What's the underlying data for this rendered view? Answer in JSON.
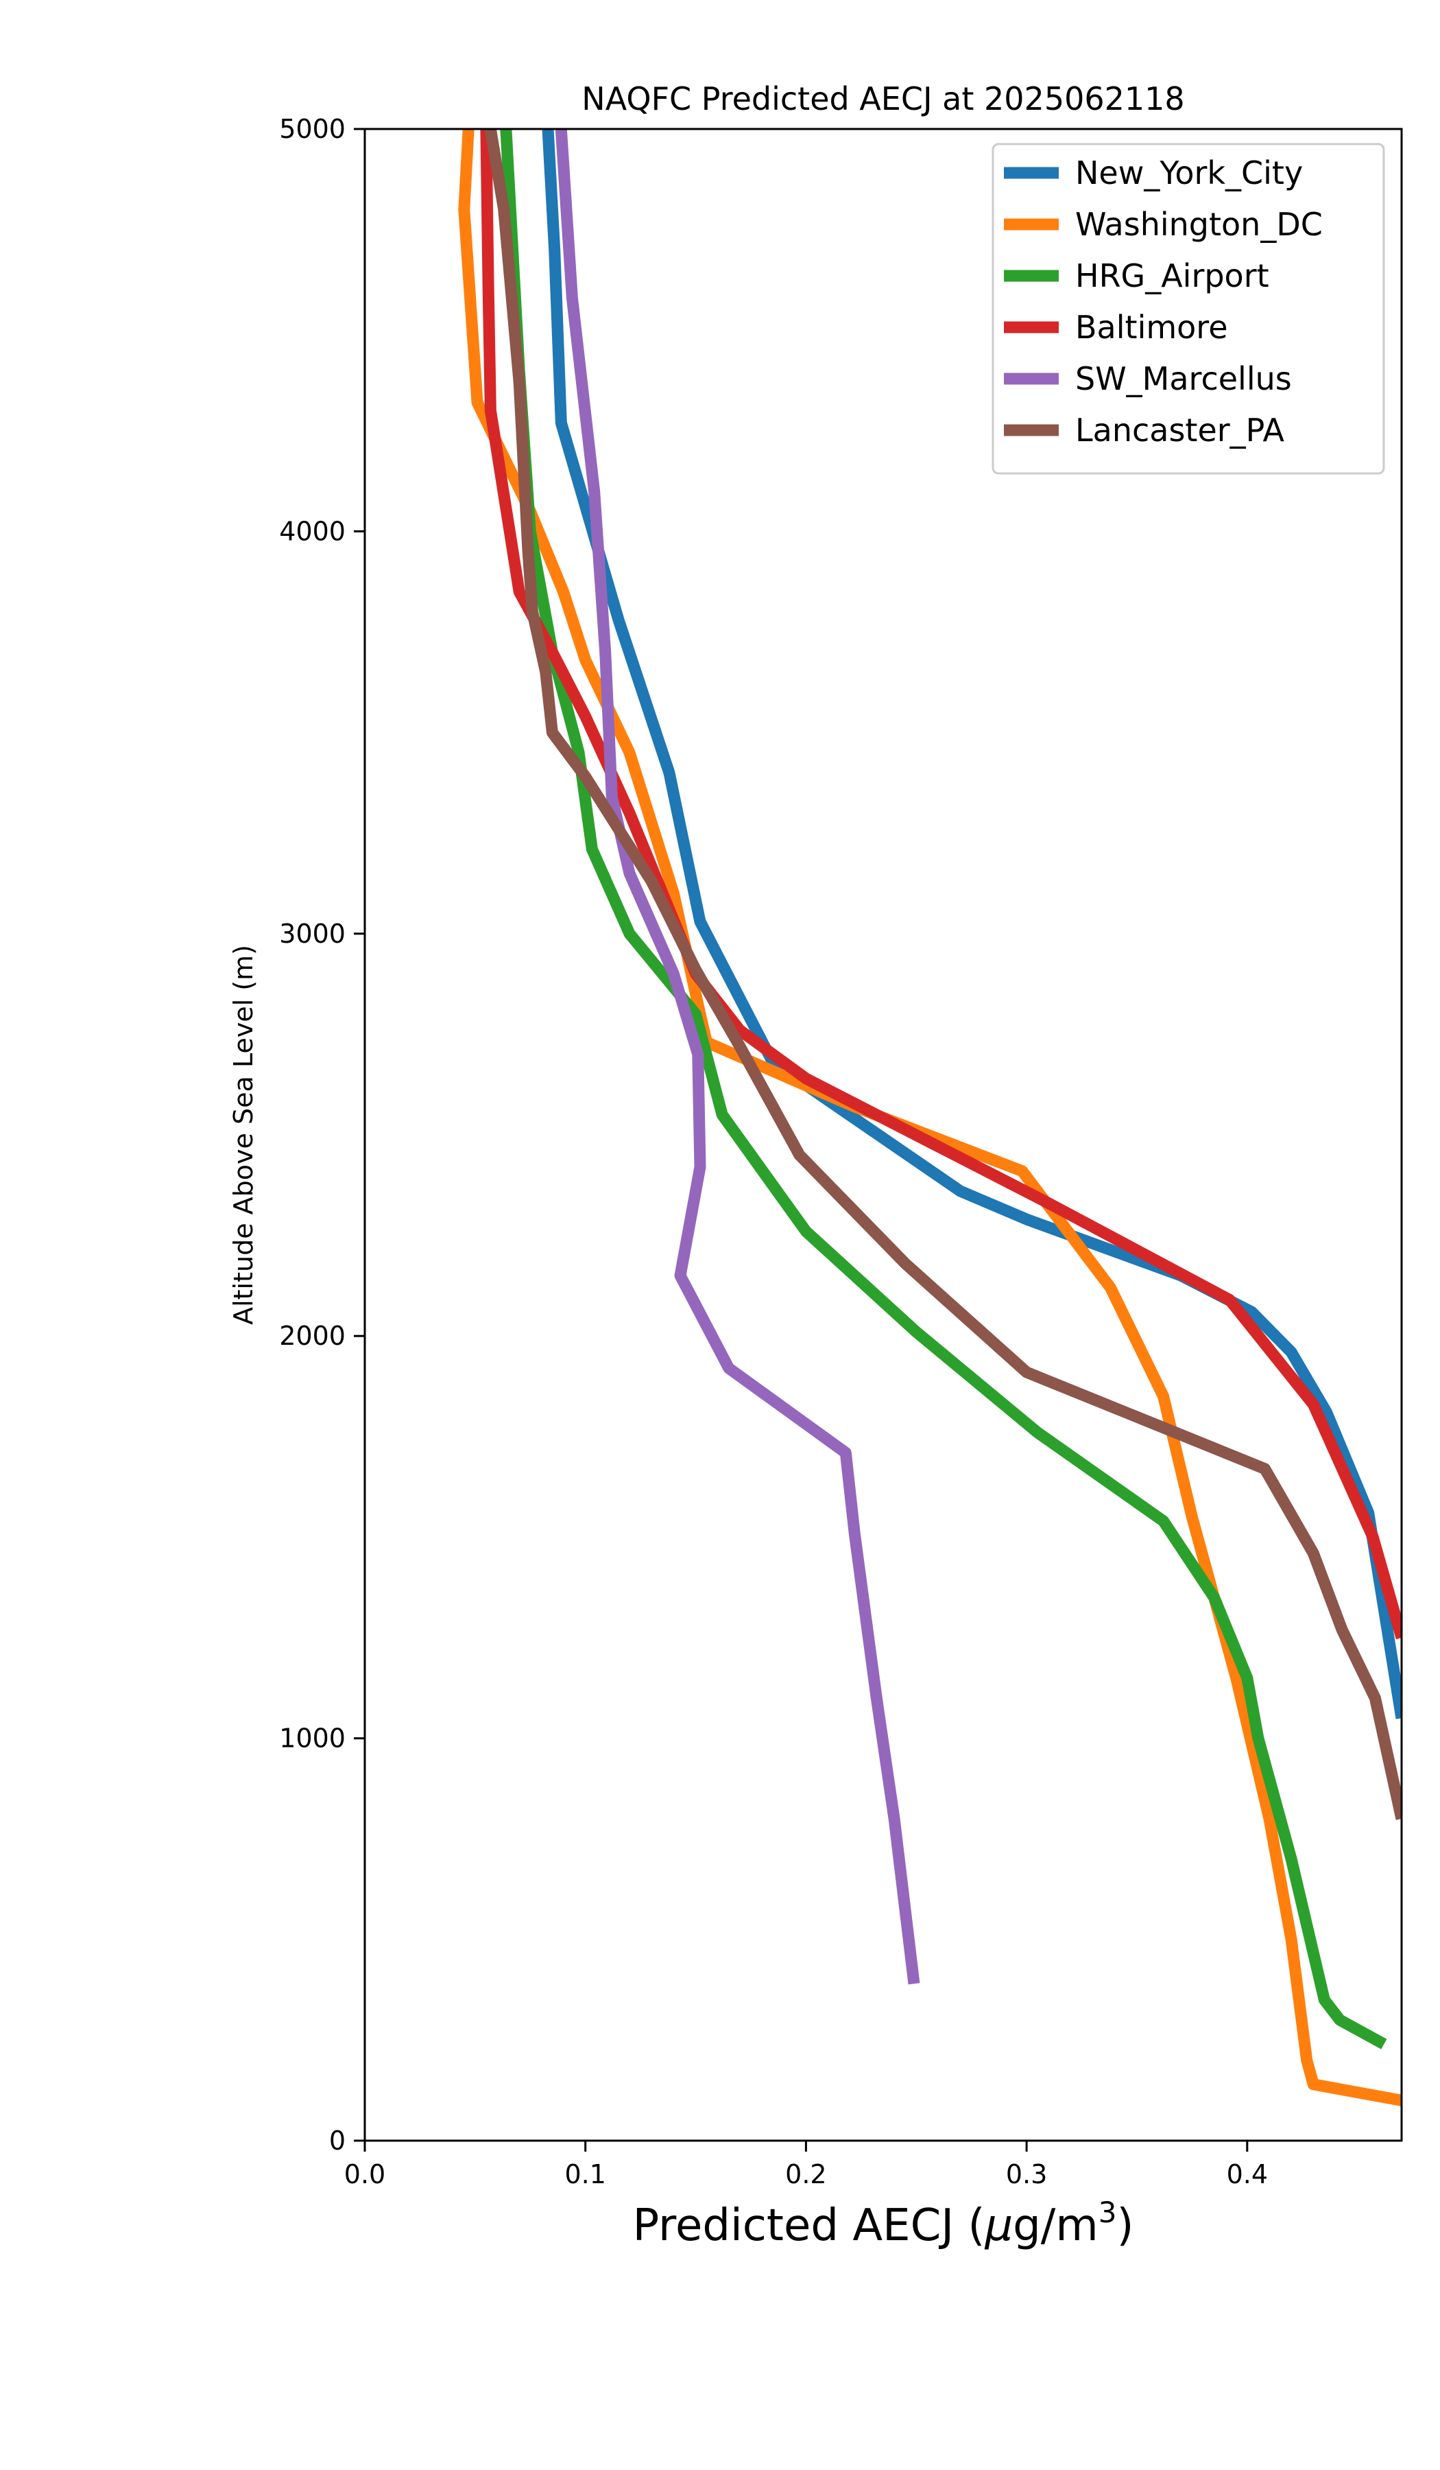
{
  "chart_data": {
    "type": "line",
    "title": "NAQFC Predicted AECJ at 2025062118",
    "xlabel_main": "Predicted AECJ (",
    "xlabel_mu": "μ",
    "xlabel_unit": "g/m",
    "xlabel_sup": "3",
    "xlabel_close": ")",
    "ylabel": "Altitude Above Sea Level (m)",
    "xlim": [
      0.0,
      0.47
    ],
    "ylim": [
      0,
      5000
    ],
    "xticks": [
      "0.0",
      "0.1",
      "0.2",
      "0.3",
      "0.4"
    ],
    "yticks": [
      "0",
      "1000",
      "2000",
      "3000",
      "4000",
      "5000"
    ],
    "grid": false,
    "legend_position": "top-right",
    "series": [
      {
        "name": "New_York_City",
        "color": "#1f77b4",
        "points": [
          [
            0.47,
            1050
          ],
          [
            0.455,
            1560
          ],
          [
            0.436,
            1810
          ],
          [
            0.42,
            1960
          ],
          [
            0.402,
            2060
          ],
          [
            0.37,
            2150
          ],
          [
            0.3,
            2290
          ],
          [
            0.27,
            2360
          ],
          [
            0.185,
            2680
          ],
          [
            0.152,
            3030
          ],
          [
            0.138,
            3400
          ],
          [
            0.115,
            3780
          ],
          [
            0.098,
            4100
          ],
          [
            0.089,
            4270
          ],
          [
            0.086,
            4700
          ],
          [
            0.083,
            5000
          ]
        ]
      },
      {
        "name": "Washington_DC",
        "color": "#ff7f0e",
        "points": [
          [
            0.47,
            100
          ],
          [
            0.43,
            140
          ],
          [
            0.427,
            200
          ],
          [
            0.42,
            500
          ],
          [
            0.41,
            800
          ],
          [
            0.395,
            1150
          ],
          [
            0.375,
            1550
          ],
          [
            0.362,
            1850
          ],
          [
            0.338,
            2120
          ],
          [
            0.298,
            2410
          ],
          [
            0.222,
            2570
          ],
          [
            0.155,
            2730
          ],
          [
            0.152,
            2800
          ],
          [
            0.14,
            3100
          ],
          [
            0.12,
            3450
          ],
          [
            0.1,
            3680
          ],
          [
            0.09,
            3850
          ],
          [
            0.075,
            4050
          ],
          [
            0.051,
            4320
          ],
          [
            0.045,
            4800
          ],
          [
            0.047,
            5000
          ]
        ]
      },
      {
        "name": "HRG_Airport",
        "color": "#2ca02c",
        "points": [
          [
            0.462,
            240
          ],
          [
            0.442,
            300
          ],
          [
            0.435,
            350
          ],
          [
            0.42,
            700
          ],
          [
            0.405,
            1000
          ],
          [
            0.4,
            1150
          ],
          [
            0.385,
            1350
          ],
          [
            0.362,
            1540
          ],
          [
            0.305,
            1760
          ],
          [
            0.25,
            2010
          ],
          [
            0.2,
            2260
          ],
          [
            0.162,
            2550
          ],
          [
            0.15,
            2800
          ],
          [
            0.12,
            3000
          ],
          [
            0.103,
            3210
          ],
          [
            0.097,
            3450
          ],
          [
            0.085,
            3700
          ],
          [
            0.075,
            4000
          ],
          [
            0.07,
            4400
          ],
          [
            0.064,
            5000
          ]
        ]
      },
      {
        "name": "Baltimore",
        "color": "#d62728",
        "points": [
          [
            0.47,
            1250
          ],
          [
            0.457,
            1500
          ],
          [
            0.43,
            1830
          ],
          [
            0.392,
            2090
          ],
          [
            0.31,
            2330
          ],
          [
            0.2,
            2640
          ],
          [
            0.17,
            2760
          ],
          [
            0.15,
            2900
          ],
          [
            0.135,
            3100
          ],
          [
            0.12,
            3300
          ],
          [
            0.1,
            3540
          ],
          [
            0.085,
            3700
          ],
          [
            0.07,
            3850
          ],
          [
            0.057,
            4300
          ],
          [
            0.056,
            4600
          ],
          [
            0.055,
            5000
          ]
        ]
      },
      {
        "name": "SW_Marcellus",
        "color": "#9467bd",
        "points": [
          [
            0.249,
            390
          ],
          [
            0.24,
            800
          ],
          [
            0.232,
            1100
          ],
          [
            0.222,
            1510
          ],
          [
            0.218,
            1710
          ],
          [
            0.165,
            1920
          ],
          [
            0.143,
            2150
          ],
          [
            0.152,
            2420
          ],
          [
            0.151,
            2700
          ],
          [
            0.14,
            2900
          ],
          [
            0.12,
            3150
          ],
          [
            0.112,
            3340
          ],
          [
            0.109,
            3700
          ],
          [
            0.104,
            4100
          ],
          [
            0.094,
            4580
          ],
          [
            0.089,
            5000
          ]
        ]
      },
      {
        "name": "Lancaster_PA",
        "color": "#8c564b",
        "points": [
          [
            0.47,
            800
          ],
          [
            0.458,
            1100
          ],
          [
            0.443,
            1270
          ],
          [
            0.43,
            1460
          ],
          [
            0.408,
            1670
          ],
          [
            0.3,
            1910
          ],
          [
            0.245,
            2180
          ],
          [
            0.197,
            2450
          ],
          [
            0.17,
            2720
          ],
          [
            0.15,
            2910
          ],
          [
            0.13,
            3130
          ],
          [
            0.1,
            3390
          ],
          [
            0.085,
            3500
          ],
          [
            0.082,
            3650
          ],
          [
            0.076,
            3800
          ],
          [
            0.074,
            3950
          ],
          [
            0.07,
            4370
          ],
          [
            0.063,
            4800
          ],
          [
            0.057,
            5000
          ]
        ]
      }
    ]
  }
}
